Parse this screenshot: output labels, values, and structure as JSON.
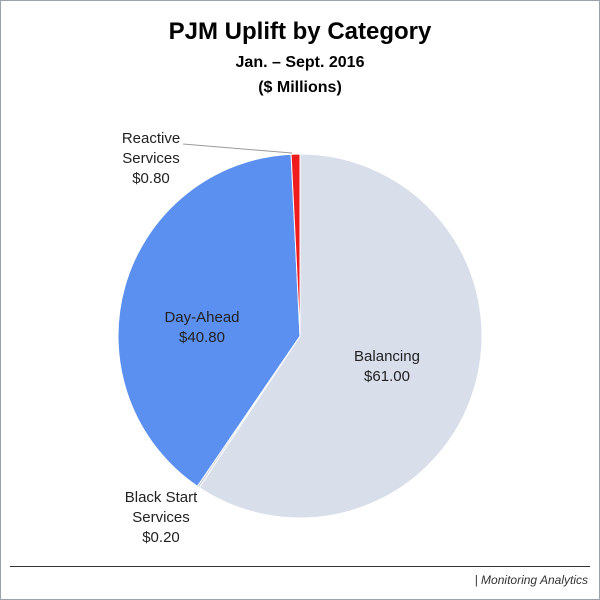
{
  "chart_data": {
    "type": "pie",
    "title": "PJM Uplift by Category",
    "subtitle": "Jan. – Sept. 2016",
    "unit_label": "($ Millions)",
    "slices": [
      {
        "name": "Balancing",
        "value": 61.0,
        "label": "$61.00",
        "color": "#d8deea"
      },
      {
        "name": "Black Start Services",
        "value": 0.2,
        "label": "$0.20",
        "color": "#c2c9d6"
      },
      {
        "name": "Day-Ahead",
        "value": 40.8,
        "label": "$40.80",
        "color": "#5b8ff0"
      },
      {
        "name": "Reactive Services",
        "value": 0.8,
        "label": "$0.80",
        "color": "#ee1c1c"
      }
    ],
    "start_angle": "12 o'clock",
    "direction": "clockwise"
  },
  "labels": {
    "balancing_name": "Balancing",
    "balancing_value": "$61.00",
    "dayahead_name": "Day-Ahead",
    "dayahead_value": "$40.80",
    "reactive_line1": "Reactive",
    "reactive_line2": "Services",
    "reactive_value": "$0.80",
    "blackstart_line1": "Black Start",
    "blackstart_line2": "Services",
    "blackstart_value": "$0.20"
  },
  "footer": "| Monitoring Analytics"
}
